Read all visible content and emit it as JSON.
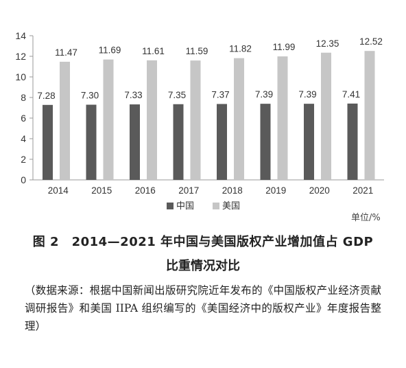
{
  "chart_data": {
    "type": "bar",
    "categories": [
      "2014",
      "2015",
      "2016",
      "2017",
      "2018",
      "2019",
      "2020",
      "2021"
    ],
    "series": [
      {
        "name": "中国",
        "values": [
          7.28,
          7.3,
          7.33,
          7.35,
          7.37,
          7.39,
          7.39,
          7.41
        ],
        "color": "#5a5a5a"
      },
      {
        "name": "美国",
        "values": [
          11.47,
          11.69,
          11.61,
          11.59,
          11.82,
          11.99,
          12.35,
          12.52
        ],
        "color": "#c6c6c6"
      }
    ],
    "value_labels": {
      "china": [
        "7.28",
        "7.30",
        "7.33",
        "7.35",
        "7.37",
        "7.39",
        "7.39",
        "7.41"
      ],
      "usa": [
        "11.47",
        "11.69",
        "11.61",
        "11.59",
        "11.82",
        "11.99",
        "12.35",
        "12.52"
      ]
    },
    "ylim": [
      0,
      14
    ],
    "yticks": [
      0,
      2,
      4,
      6,
      8,
      10,
      12,
      14
    ],
    "legend_position": "bottom",
    "grid": false
  },
  "unit_label": "单位/%",
  "caption": {
    "line1": "图 2　2014—2021 年中国与美国版权产业增加值占 GDP",
    "line2": "比重情况对比"
  },
  "source": "（数据来源：根据中国新闻出版研究院近年发布的《中国版权产业经济贡献调研报告》和美国 IIPA 组织编写的《美国经济中的版权产业》年度报告整理）"
}
